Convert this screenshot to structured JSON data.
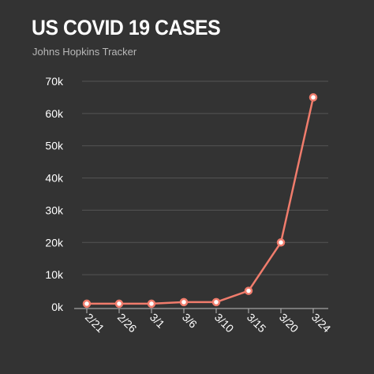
{
  "header": {
    "title": "US COVID 19 CASES",
    "subtitle": "Johns Hopkins Tracker"
  },
  "colors": {
    "background": "#333333",
    "line": "#f07c6c",
    "grid": "#555555",
    "text": "#ffffff"
  },
  "chart_data": {
    "type": "line",
    "title": "US COVID 19 CASES",
    "subtitle": "Johns Hopkins Tracker",
    "xlabel": "",
    "ylabel": "",
    "categories": [
      "2/21",
      "2/26",
      "3/1",
      "3/6",
      "3/10",
      "3/15",
      "3/20",
      "3/24"
    ],
    "values": [
      1000,
      1000,
      1000,
      1500,
      1500,
      5000,
      20000,
      65000
    ],
    "ylim": [
      0,
      70000
    ],
    "yticks": [
      0,
      10000,
      20000,
      30000,
      40000,
      50000,
      60000,
      70000
    ],
    "ytick_labels": [
      "0k",
      "10k",
      "20k",
      "30k",
      "40k",
      "50k",
      "60k",
      "70k"
    ],
    "grid": true,
    "legend": "none"
  }
}
